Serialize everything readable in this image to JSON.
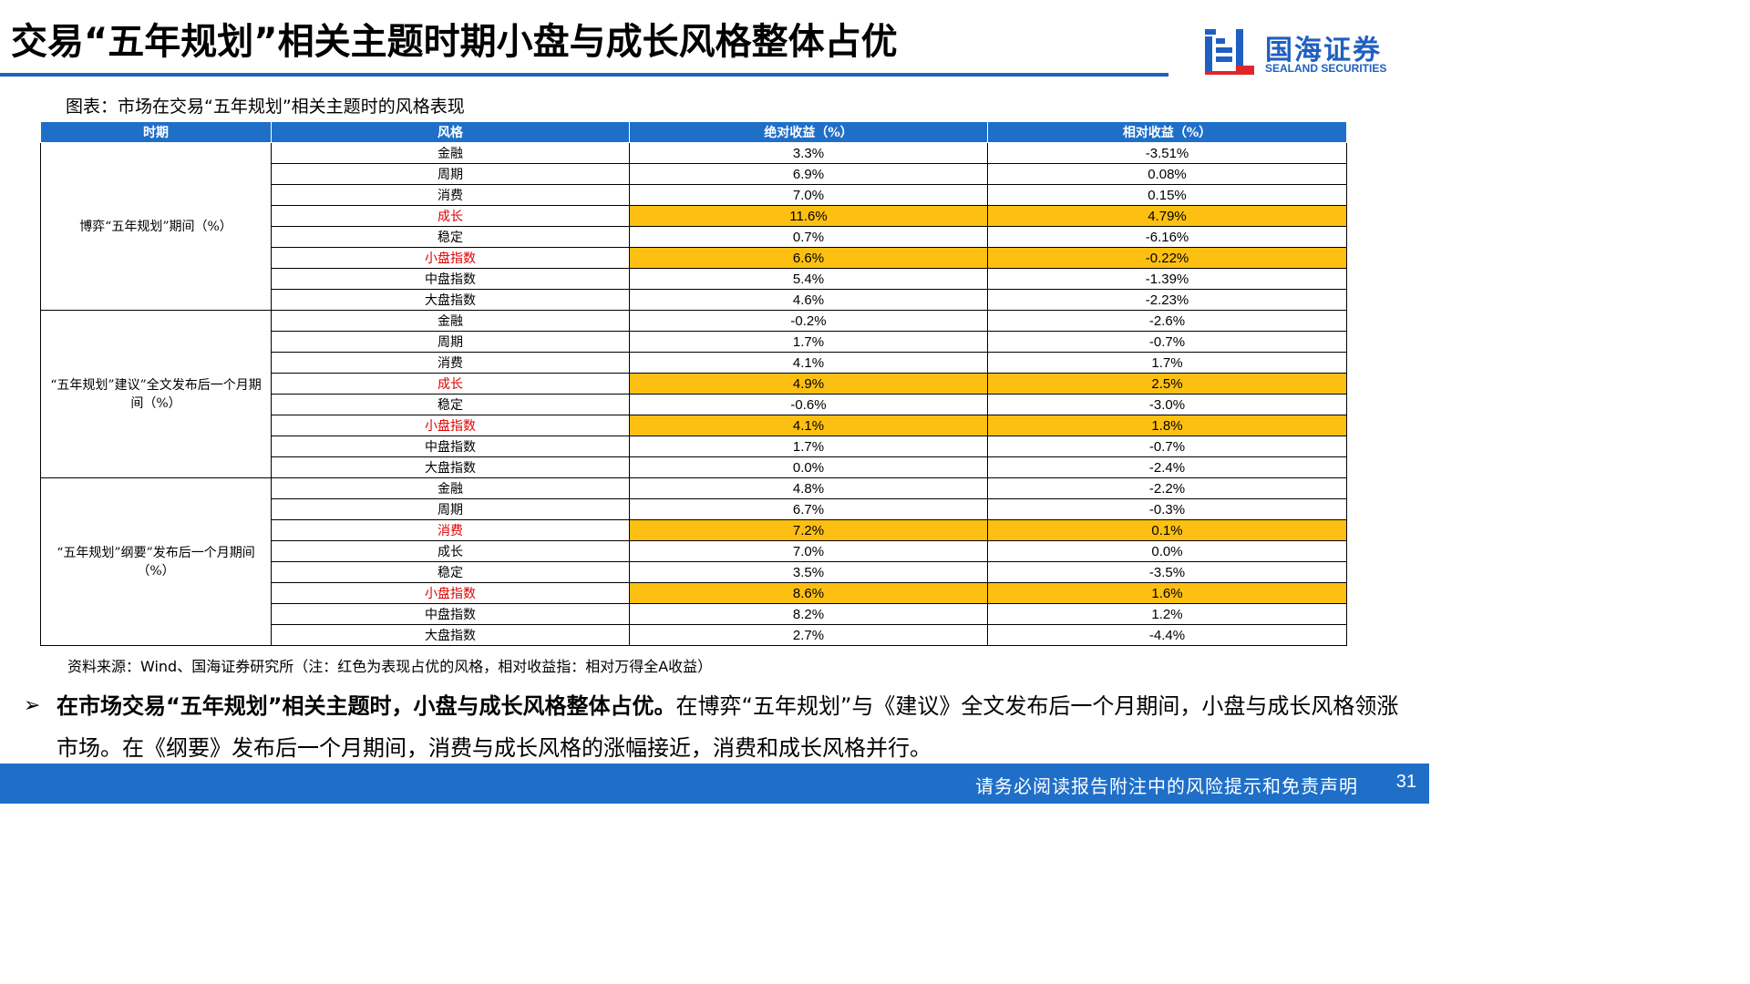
{
  "header": {
    "title": "交易“五年规划”相关主题时期小盘与成长风格整体占优",
    "logo_cn": "国海证券",
    "logo_en": "SEALAND SECURITIES"
  },
  "chart_caption": "图表：市场在交易“五年规划”相关主题时的风格表现",
  "table": {
    "headers": [
      "时期",
      "风格",
      "绝对收益（%）",
      "相对收益（%）"
    ],
    "groups": [
      {
        "period": "博弈“五年规划”期间（%）",
        "rows": [
          {
            "style": "金融",
            "abs": "3.3%",
            "rel": "-3.51%",
            "highlight": false
          },
          {
            "style": "周期",
            "abs": "6.9%",
            "rel": "0.08%",
            "highlight": false
          },
          {
            "style": "消费",
            "abs": "7.0%",
            "rel": "0.15%",
            "highlight": false
          },
          {
            "style": "成长",
            "abs": "11.6%",
            "rel": "4.79%",
            "highlight": true
          },
          {
            "style": "稳定",
            "abs": "0.7%",
            "rel": "-6.16%",
            "highlight": false
          },
          {
            "style": "小盘指数",
            "abs": "6.6%",
            "rel": "-0.22%",
            "highlight": true
          },
          {
            "style": "中盘指数",
            "abs": "5.4%",
            "rel": "-1.39%",
            "highlight": false
          },
          {
            "style": "大盘指数",
            "abs": "4.6%",
            "rel": "-2.23%",
            "highlight": false
          }
        ]
      },
      {
        "period": "“五年规划”建议”全文发布后一个月期间（%）",
        "rows": [
          {
            "style": "金融",
            "abs": "-0.2%",
            "rel": "-2.6%",
            "highlight": false
          },
          {
            "style": "周期",
            "abs": "1.7%",
            "rel": "-0.7%",
            "highlight": false
          },
          {
            "style": "消费",
            "abs": "4.1%",
            "rel": "1.7%",
            "highlight": false
          },
          {
            "style": "成长",
            "abs": "4.9%",
            "rel": "2.5%",
            "highlight": true
          },
          {
            "style": "稳定",
            "abs": "-0.6%",
            "rel": "-3.0%",
            "highlight": false
          },
          {
            "style": "小盘指数",
            "abs": "4.1%",
            "rel": "1.8%",
            "highlight": true
          },
          {
            "style": "中盘指数",
            "abs": "1.7%",
            "rel": "-0.7%",
            "highlight": false
          },
          {
            "style": "大盘指数",
            "abs": "0.0%",
            "rel": "-2.4%",
            "highlight": false
          }
        ]
      },
      {
        "period": "“五年规划”纲要”发布后一个月期间（%）",
        "rows": [
          {
            "style": "金融",
            "abs": "4.8%",
            "rel": "-2.2%",
            "highlight": false
          },
          {
            "style": "周期",
            "abs": "6.7%",
            "rel": "-0.3%",
            "highlight": false
          },
          {
            "style": "消费",
            "abs": "7.2%",
            "rel": "0.1%",
            "highlight": true
          },
          {
            "style": "成长",
            "abs": "7.0%",
            "rel": "0.0%",
            "highlight": false
          },
          {
            "style": "稳定",
            "abs": "3.5%",
            "rel": "-3.5%",
            "highlight": false
          },
          {
            "style": "小盘指数",
            "abs": "8.6%",
            "rel": "1.6%",
            "highlight": true
          },
          {
            "style": "中盘指数",
            "abs": "8.2%",
            "rel": "1.2%",
            "highlight": false
          },
          {
            "style": "大盘指数",
            "abs": "2.7%",
            "rel": "-4.4%",
            "highlight": false
          }
        ]
      }
    ]
  },
  "source": "资料来源：Wind、国海证券研究所（注：红色为表现占优的风格，相对收益指：相对万得全A收益）",
  "bullet": {
    "marker": "➢",
    "bold": "在市场交易“五年规划”相关主题时，小盘与成长风格整体占优。",
    "rest": "在博弈“五年规划”与《建议》全文发布后一个月期间，小盘与成长风格领涨市场。在《纲要》发布后一个月期间，消费与成长风格的涨幅接近，消费和成长风格并行。"
  },
  "footer": {
    "disclaimer": "请务必阅读报告附注中的风险提示和免责声明",
    "page_number": "31"
  },
  "colors": {
    "brand_blue": "#1f6fc9",
    "highlight": "#fdc012",
    "emphasis_red": "#e00000"
  }
}
